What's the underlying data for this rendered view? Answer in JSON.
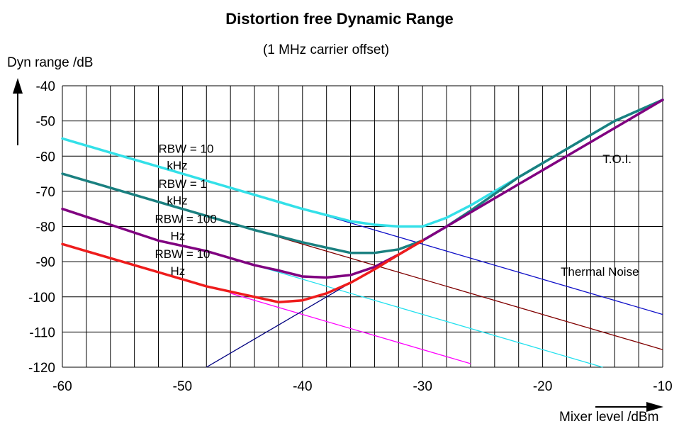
{
  "chart_data": {
    "type": "line",
    "title": "Distortion free Dynamic Range",
    "subtitle": "(1 MHz carrier offset)",
    "ylabel": "Dyn range /dB",
    "xlabel": "Mixer level /dBm",
    "xlim": [
      -60,
      -10
    ],
    "ylim": [
      -120,
      -40
    ],
    "xticks": [
      -60,
      -50,
      -40,
      -30,
      -20,
      -10
    ],
    "yticks": [
      -40,
      -50,
      -60,
      -70,
      -80,
      -90,
      -100,
      -110,
      -120
    ],
    "grid": true,
    "series": [
      {
        "label": "RBW = 10 kHz",
        "color": "#33e0e8",
        "width": 3.5,
        "points": [
          [
            -60,
            -55
          ],
          [
            -56,
            -59
          ],
          [
            -52,
            -63
          ],
          [
            -48,
            -67
          ],
          [
            -44,
            -71
          ],
          [
            -40,
            -75
          ],
          [
            -36,
            -78.5
          ],
          [
            -34,
            -79.5
          ],
          [
            -32,
            -80
          ],
          [
            -30,
            -80
          ],
          [
            -28,
            -77.5
          ],
          [
            -26,
            -74
          ],
          [
            -22,
            -66
          ],
          [
            -18,
            -58
          ],
          [
            -14,
            -50
          ],
          [
            -10,
            -44
          ]
        ]
      },
      {
        "label": "RBW = 1 kHz",
        "color": "#1a8080",
        "width": 3.5,
        "points": [
          [
            -60,
            -65
          ],
          [
            -56,
            -69
          ],
          [
            -52,
            -73
          ],
          [
            -48,
            -77
          ],
          [
            -44,
            -81
          ],
          [
            -40,
            -84.5
          ],
          [
            -38,
            -86
          ],
          [
            -36,
            -87.5
          ],
          [
            -34,
            -87.5
          ],
          [
            -32,
            -86.5
          ],
          [
            -30,
            -84
          ],
          [
            -28,
            -80
          ],
          [
            -26,
            -75.5
          ],
          [
            -22,
            -66
          ],
          [
            -18,
            -58
          ],
          [
            -14,
            -50
          ],
          [
            -10,
            -44
          ]
        ]
      },
      {
        "label": "RBW = 100 Hz",
        "color": "#800080",
        "width": 3.5,
        "points": [
          [
            -60,
            -75
          ],
          [
            -56,
            -79.5
          ],
          [
            -52,
            -84
          ],
          [
            -48,
            -87
          ],
          [
            -44,
            -91
          ],
          [
            -42,
            -92.5
          ],
          [
            -40,
            -94.2
          ],
          [
            -38,
            -94.5
          ],
          [
            -36,
            -93.8
          ],
          [
            -34,
            -91.5
          ],
          [
            -32,
            -88
          ],
          [
            -30,
            -84
          ],
          [
            -26,
            -76
          ],
          [
            -22,
            -68
          ],
          [
            -18,
            -60
          ],
          [
            -14,
            -52
          ],
          [
            -10,
            -44
          ]
        ]
      },
      {
        "label": "RBW = 10 Hz",
        "color": "#ee1c1c",
        "width": 3.5,
        "points": [
          [
            -60,
            -85
          ],
          [
            -56,
            -89
          ],
          [
            -52,
            -93
          ],
          [
            -48,
            -97
          ],
          [
            -44,
            -100
          ],
          [
            -42,
            -101.5
          ],
          [
            -40,
            -101
          ],
          [
            -38,
            -99
          ],
          [
            -36,
            -96
          ],
          [
            -34,
            -92.2
          ],
          [
            -32,
            -88
          ],
          [
            -30,
            -84
          ]
        ]
      }
    ],
    "asymptotes": [
      {
        "name": "thermal-noise-10khz",
        "color": "#1010c8",
        "points": [
          [
            -44,
            -71
          ],
          [
            -10,
            -105
          ]
        ]
      },
      {
        "name": "thermal-noise-1khz",
        "color": "#800000",
        "points": [
          [
            -44,
            -81
          ],
          [
            -10,
            -115
          ]
        ]
      },
      {
        "name": "thermal-noise-100hz",
        "color": "#22e0ee",
        "points": [
          [
            -48,
            -87
          ],
          [
            -15,
            -120
          ]
        ]
      },
      {
        "name": "thermal-noise-10hz",
        "color": "#ff00ff",
        "points": [
          [
            -46,
            -99
          ],
          [
            -26,
            -119
          ]
        ]
      },
      {
        "name": "toi-line",
        "color": "#000080",
        "points": [
          [
            -48,
            -120
          ],
          [
            -10,
            -44
          ]
        ]
      }
    ],
    "annotations": [
      {
        "text": "RBW = 10",
        "x": -52,
        "y": -59
      },
      {
        "text": "kHz",
        "x": -51.3,
        "y": -63.8
      },
      {
        "text": "RBW = 1",
        "x": -52,
        "y": -69
      },
      {
        "text": "kHz",
        "x": -51.3,
        "y": -73.8
      },
      {
        "text": "RBW = 100",
        "x": -52.3,
        "y": -79
      },
      {
        "text": "Hz",
        "x": -51,
        "y": -83.8
      },
      {
        "text": "RBW = 10",
        "x": -52.3,
        "y": -89
      },
      {
        "text": "Hz",
        "x": -51,
        "y": -93.8
      },
      {
        "text": "T.O.I.",
        "x": -15,
        "y": -62
      },
      {
        "text": "Thermal Noise",
        "x": -18.5,
        "y": -94
      }
    ]
  }
}
